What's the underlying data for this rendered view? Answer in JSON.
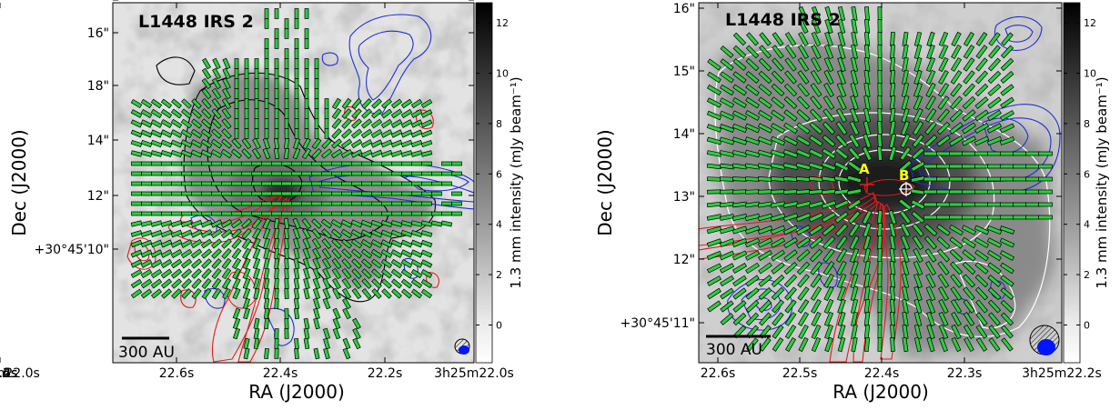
{
  "chart_data": [
    {
      "type": "heatmap",
      "title": "L1448 IRS 2",
      "xlabel": "RA (J2000)",
      "ylabel": "Dec (J2000)",
      "x_ticks": [
        "22.6s",
        "22.4s",
        "22.2s",
        "3h25m22.0s"
      ],
      "y_ticks": [
        "18\"",
        "16\"",
        "14\"",
        "12\"",
        "+30°45'10\""
      ],
      "colorbar": {
        "label": "1.3 mm intensity (mJy beam⁻¹)",
        "ticks": [
          "12",
          "10",
          "8",
          "6",
          "4",
          "2",
          "0"
        ],
        "range": [
          -1.5,
          12.8
        ]
      },
      "scalebar": "300 AU",
      "contours": [
        "black",
        "blue",
        "red"
      ],
      "vector_color": "#2ecc40",
      "grid": false
    },
    {
      "type": "heatmap",
      "title": "L1448 IRS 2",
      "xlabel": "RA (J2000)",
      "ylabel": "Dec (J2000)",
      "x_ticks": [
        "22.6s",
        "22.5s",
        "22.4s",
        "22.3s",
        "3h25m22.2s"
      ],
      "y_ticks": [
        "16\"",
        "15\"",
        "14\"",
        "13\"",
        "12\"",
        "+30°45'11\""
      ],
      "colorbar": {
        "label": "1.3 mm intensity (mJy beam⁻¹)",
        "ticks": [
          "12",
          "10",
          "8",
          "6",
          "4",
          "2",
          "0"
        ],
        "range": [
          -1.5,
          12.8
        ]
      },
      "scalebar": "300 AU",
      "sources": [
        "A",
        "B"
      ],
      "contours": [
        "white",
        "blue",
        "red"
      ],
      "vector_color": "#2ecc40",
      "grid": false
    }
  ]
}
